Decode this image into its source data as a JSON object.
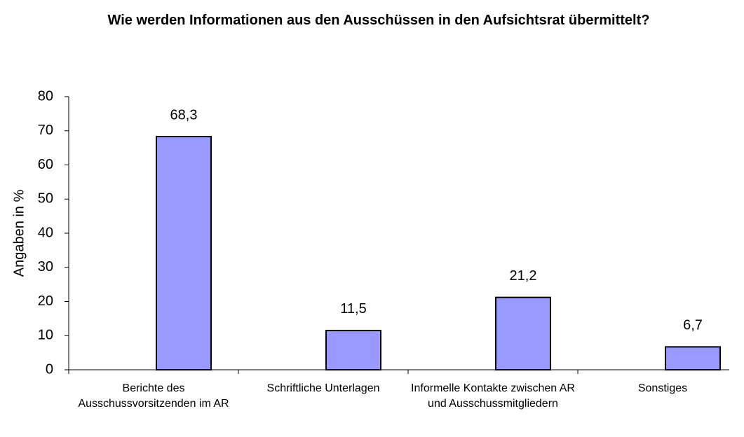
{
  "chart_data": {
    "type": "bar",
    "title": "Wie werden Informationen aus den Ausschüssen in den Aufsichtsrat übermittelt?",
    "y_label": "Angaben in %",
    "categories": [
      "Berichte des Ausschussvorsitzenden im AR",
      "Schriftliche Unterlagen",
      "Informelle Kontakte zwischen AR und Ausschussmitgliedern",
      "Sonstiges"
    ],
    "values": [
      68.3,
      11.5,
      21.2,
      6.7
    ],
    "value_labels": [
      "68,3",
      "11,5",
      "21,2",
      "6,7"
    ],
    "color": "#9999ff",
    "ylim": [
      0,
      80
    ],
    "yticks": [
      0,
      10,
      20,
      30,
      40,
      50,
      60,
      70,
      80
    ],
    "grid": false
  }
}
